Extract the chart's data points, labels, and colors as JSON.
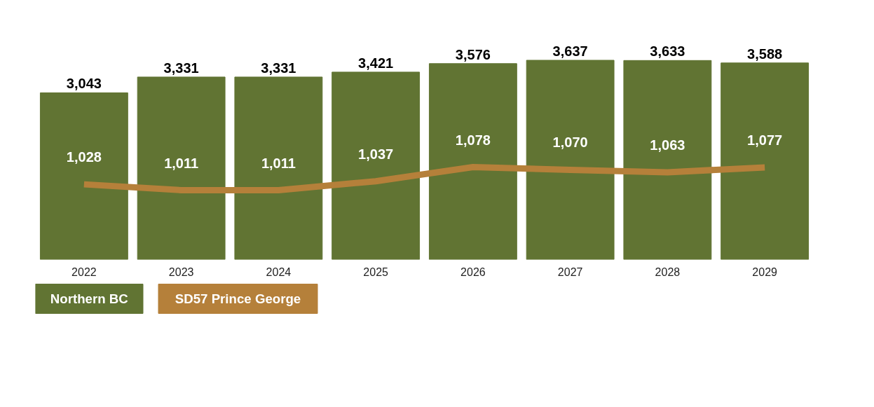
{
  "chart_data": {
    "type": "bar",
    "categories": [
      "2022",
      "2023",
      "2024",
      "2025",
      "2026",
      "2027",
      "2028",
      "2029"
    ],
    "series": [
      {
        "name": "Northern BC",
        "color": "#617433",
        "values": [
          3043,
          3331,
          3331,
          3421,
          3576,
          3637,
          3633,
          3588
        ],
        "value_labels": [
          "3,043",
          "3,331",
          "3,331",
          "3,421",
          "3,576",
          "3,637",
          "3,633",
          "3,588"
        ]
      },
      {
        "name": "SD57 Prince George",
        "color": "#b5803a",
        "type": "line",
        "axis": "y2",
        "values": [
          1028,
          1011,
          1011,
          1037,
          1078,
          1070,
          1063,
          1077
        ],
        "value_labels": [
          "1,028",
          "1,011",
          "1,011",
          "1,037",
          "1,078",
          "1,070",
          "1,063",
          "1,077"
        ]
      }
    ],
    "tick_labels": "x",
    "legend": "bottom"
  }
}
